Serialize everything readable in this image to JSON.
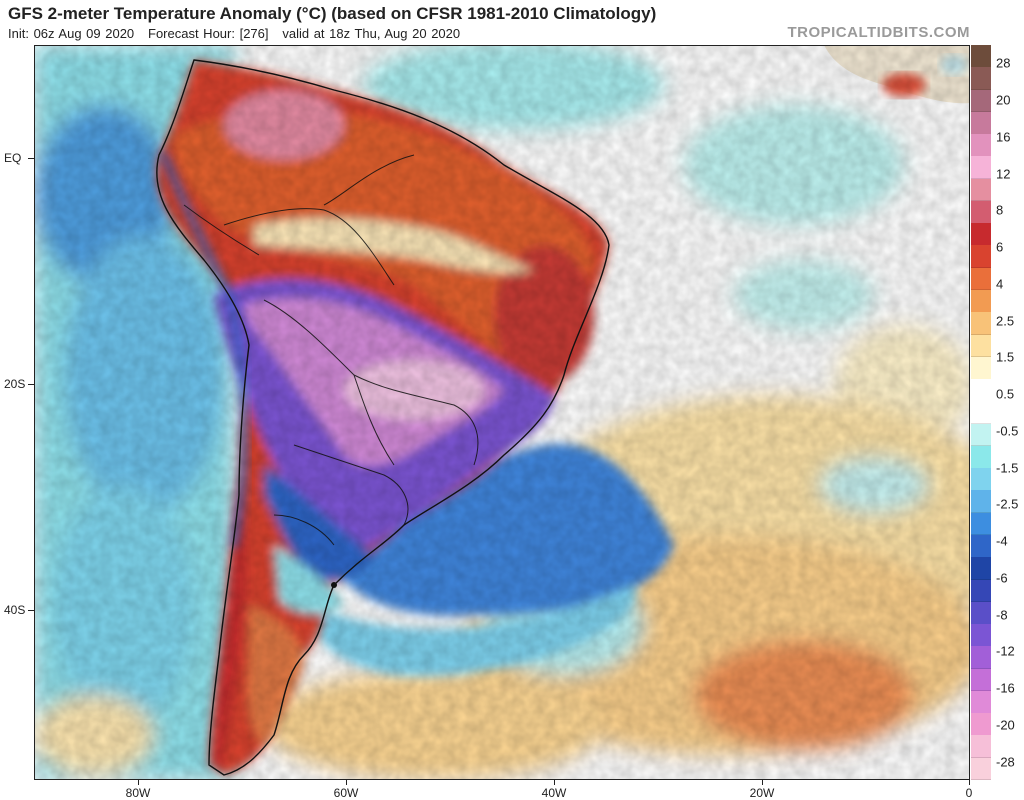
{
  "header": {
    "title": "GFS 2-meter Temperature Anomaly (°C) (based on CFSR 1981-2010 Climatology)",
    "init": "Init: 06z Aug 09 2020",
    "forecast_hour": "Forecast Hour: [276]",
    "valid": "valid at 18z Thu, Aug 20 2020",
    "brand": "TROPICALTIDBITS.COM"
  },
  "map": {
    "region": "South America and South Atlantic",
    "lat_labels": [
      {
        "label": "EQ",
        "lat": 0
      },
      {
        "label": "20S",
        "lat": -20
      },
      {
        "label": "40S",
        "lat": -40
      }
    ],
    "lon_labels": [
      {
        "label": "80W",
        "lon": -80
      },
      {
        "label": "60W",
        "lon": -60
      },
      {
        "label": "40W",
        "lon": -40
      },
      {
        "label": "20W",
        "lon": -20
      },
      {
        "label": "0",
        "lon": 0
      }
    ]
  },
  "colorbar": {
    "labels": [
      "28",
      "20",
      "16",
      "12",
      "8",
      "6",
      "4",
      "2.5",
      "1.5",
      "0.5",
      "-0.5",
      "-1.5",
      "-2.5",
      "-4",
      "-6",
      "-8",
      "-12",
      "-16",
      "-20",
      "-28"
    ],
    "colors": [
      "#6d4c3b",
      "#8a5a55",
      "#a5687a",
      "#c77a9c",
      "#e292bd",
      "#f6b3d8",
      "#e58fa0",
      "#d35d70",
      "#c72a2e",
      "#d9432f",
      "#ea6f3a",
      "#f29b52",
      "#f8c278",
      "#fde0a0",
      "#fff6d0",
      "#ffffff",
      "#ffffff",
      "#c2f3f1",
      "#8be8ea",
      "#7fd3ee",
      "#5fb3ea",
      "#3d8ee0",
      "#2f66c8",
      "#1f45a6",
      "#3547b6",
      "#5a4fc8",
      "#7b55d4",
      "#a25fd8",
      "#c46fd8",
      "#e08ad8",
      "#ef9ad0",
      "#f6bfd8",
      "#f9d0dc"
    ],
    "label_positions": [
      1,
      3,
      5,
      7,
      9,
      11,
      13,
      15,
      17,
      19,
      21,
      23,
      25,
      27,
      29,
      31,
      33,
      35,
      37,
      39
    ]
  }
}
